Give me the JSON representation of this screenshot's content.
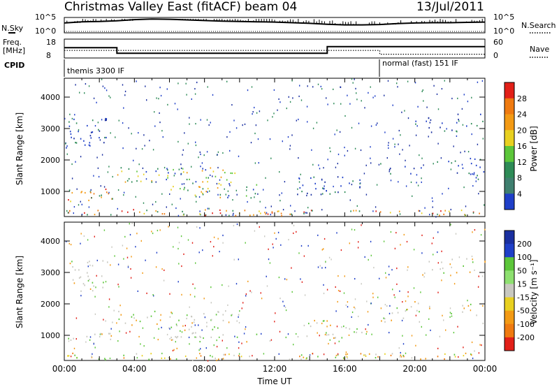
{
  "header": {
    "title": "Christmas Valley East (fitACF)",
    "beam": "beam 04",
    "date": "13/Jul/2011"
  },
  "left_labels": {
    "nsky": "N.Sky",
    "freq_line1": "Freq.",
    "freq_line2": "[MHz]",
    "cpid": "CPID"
  },
  "right_labels": {
    "nsearch": "N.Search",
    "nave": "Nave"
  },
  "noise_panel": {
    "left_ticks": [
      "10^5",
      "10^0"
    ],
    "right_ticks": [
      "10^5",
      "10^0"
    ]
  },
  "freq_panel": {
    "left_ticks": [
      "18",
      "8"
    ],
    "right_ticks": [
      "60",
      "0"
    ]
  },
  "cpid_panel": {
    "modes": [
      {
        "label": "themis 3300 IF",
        "start_hour": 0,
        "end_hour": 18
      },
      {
        "label": "normal (fast) 151 IF",
        "start_hour": 18,
        "end_hour": 24
      }
    ]
  },
  "colors": {
    "blue": "#1f3fc8",
    "darkblue": "#1a2fa0",
    "green": "#2e8b57",
    "lightgreen": "#5cc63a",
    "yellow": "#e8d020",
    "orange": "#f39a14",
    "darkorange": "#ef7a10",
    "red": "#e22018",
    "grey": "#c8c8c0",
    "panelbg": "#ffffff"
  },
  "chart_data": [
    {
      "type": "line",
      "title": "N.Sky / N.Search",
      "x": [
        0,
        1,
        2,
        3,
        4,
        5,
        6,
        7,
        8,
        9,
        10,
        11,
        12,
        13,
        14,
        15,
        16,
        17,
        18,
        19,
        20,
        21,
        22,
        23,
        24
      ],
      "series": [
        {
          "name": "N.Sky",
          "values": [
            3.2,
            3.6,
            3.7,
            3.9,
            4.3,
            4.5,
            4.4,
            4.2,
            4.0,
            3.8,
            3.7,
            3.6,
            3.5,
            3.3,
            3.1,
            2.8,
            2.6,
            2.6,
            2.7,
            3.0,
            3.2,
            3.3,
            3.3,
            3.4,
            3.5
          ]
        }
      ],
      "ylim_log": [
        0,
        5
      ]
    },
    {
      "type": "line",
      "title": "Freq. / Nave",
      "x": [
        0,
        3,
        3,
        15,
        15,
        18,
        18,
        24
      ],
      "series": [
        {
          "name": "Freq. [MHz]",
          "values": [
            13.5,
            13.5,
            10.5,
            10.5,
            14.0,
            14.0,
            14.0,
            14.0
          ]
        },
        {
          "name": "Nave",
          "values": [
            24,
            24,
            24,
            24,
            24,
            24,
            12,
            12
          ]
        }
      ]
    },
    {
      "type": "heatmap",
      "title": "Power [dB]",
      "ylabel": "Slant Range [km]",
      "xlabel": "Time UT",
      "xlim_hours": [
        0,
        24
      ],
      "ylim_km": [
        200,
        4600
      ],
      "yticks": [
        "1000",
        "2000",
        "3000",
        "4000"
      ],
      "colorbar": {
        "label": "Power [dB]",
        "ticks": [
          "4",
          "8",
          "12",
          "16",
          "20",
          "24",
          "28"
        ]
      },
      "scatter_regions": [
        {
          "t0": 0.0,
          "t1": 2.5,
          "r0": 2400,
          "r1": 3400,
          "level": "low",
          "density": 0.6
        },
        {
          "t0": 0.2,
          "t1": 3.0,
          "r0": 700,
          "r1": 1100,
          "level": "high",
          "density": 0.8
        },
        {
          "t0": 3.0,
          "t1": 10.0,
          "r0": 1300,
          "r1": 1800,
          "level": "mid",
          "density": 0.7
        },
        {
          "t0": 6.0,
          "t1": 11.0,
          "r0": 800,
          "r1": 1300,
          "level": "mid",
          "density": 0.6
        },
        {
          "t0": 13.0,
          "t1": 17.0,
          "r0": 900,
          "r1": 1500,
          "level": "low",
          "density": 0.6
        },
        {
          "t0": 18.0,
          "t1": 24.0,
          "r0": 1400,
          "r1": 2100,
          "level": "low",
          "density": 0.3
        },
        {
          "t0": 20.0,
          "t1": 24.0,
          "r0": 2900,
          "r1": 3500,
          "level": "low",
          "density": 0.4
        },
        {
          "t0": 0.0,
          "t1": 24.0,
          "r0": 250,
          "r1": 450,
          "level": "ground",
          "density": 0.7
        }
      ]
    },
    {
      "type": "heatmap",
      "title": "Velocity [m s^-1]",
      "ylabel": "Slant Range [km]",
      "xlabel": "Time UT",
      "xlim_hours": [
        0,
        24
      ],
      "ylim_km": [
        200,
        4600
      ],
      "yticks": [
        "1000",
        "2000",
        "3000",
        "4000"
      ],
      "xticks": [
        "00:00",
        "04:00",
        "08:00",
        "12:00",
        "16:00",
        "20:00",
        "00:00"
      ],
      "colorbar": {
        "label": "Velocity [m s⁻¹]",
        "ticks": [
          "200",
          "100",
          "50",
          "15",
          "-15",
          "-50",
          "-100",
          "-200"
        ]
      },
      "scatter_regions": [
        {
          "t0": 0.0,
          "t1": 2.5,
          "r0": 2400,
          "r1": 3400,
          "level": "grey",
          "density": 0.5
        },
        {
          "t0": 0.2,
          "t1": 3.0,
          "r0": 700,
          "r1": 1100,
          "level": "grey",
          "density": 0.6
        },
        {
          "t0": 3.0,
          "t1": 10.0,
          "r0": 1300,
          "r1": 1800,
          "level": "grey",
          "density": 0.5
        },
        {
          "t0": 6.0,
          "t1": 11.0,
          "r0": 800,
          "r1": 1300,
          "level": "grey",
          "density": 0.5
        },
        {
          "t0": 13.0,
          "t1": 17.0,
          "r0": 900,
          "r1": 1500,
          "level": "grey",
          "density": 0.5
        },
        {
          "t0": 18.0,
          "t1": 24.0,
          "r0": 1400,
          "r1": 2100,
          "level": "grey",
          "density": 0.3
        },
        {
          "t0": 20.0,
          "t1": 24.0,
          "r0": 2900,
          "r1": 3500,
          "level": "grey",
          "density": 0.3
        },
        {
          "t0": 0.0,
          "t1": 24.0,
          "r0": 250,
          "r1": 450,
          "level": "ground",
          "density": 0.7
        }
      ]
    }
  ],
  "x_axis_label": "Time UT"
}
